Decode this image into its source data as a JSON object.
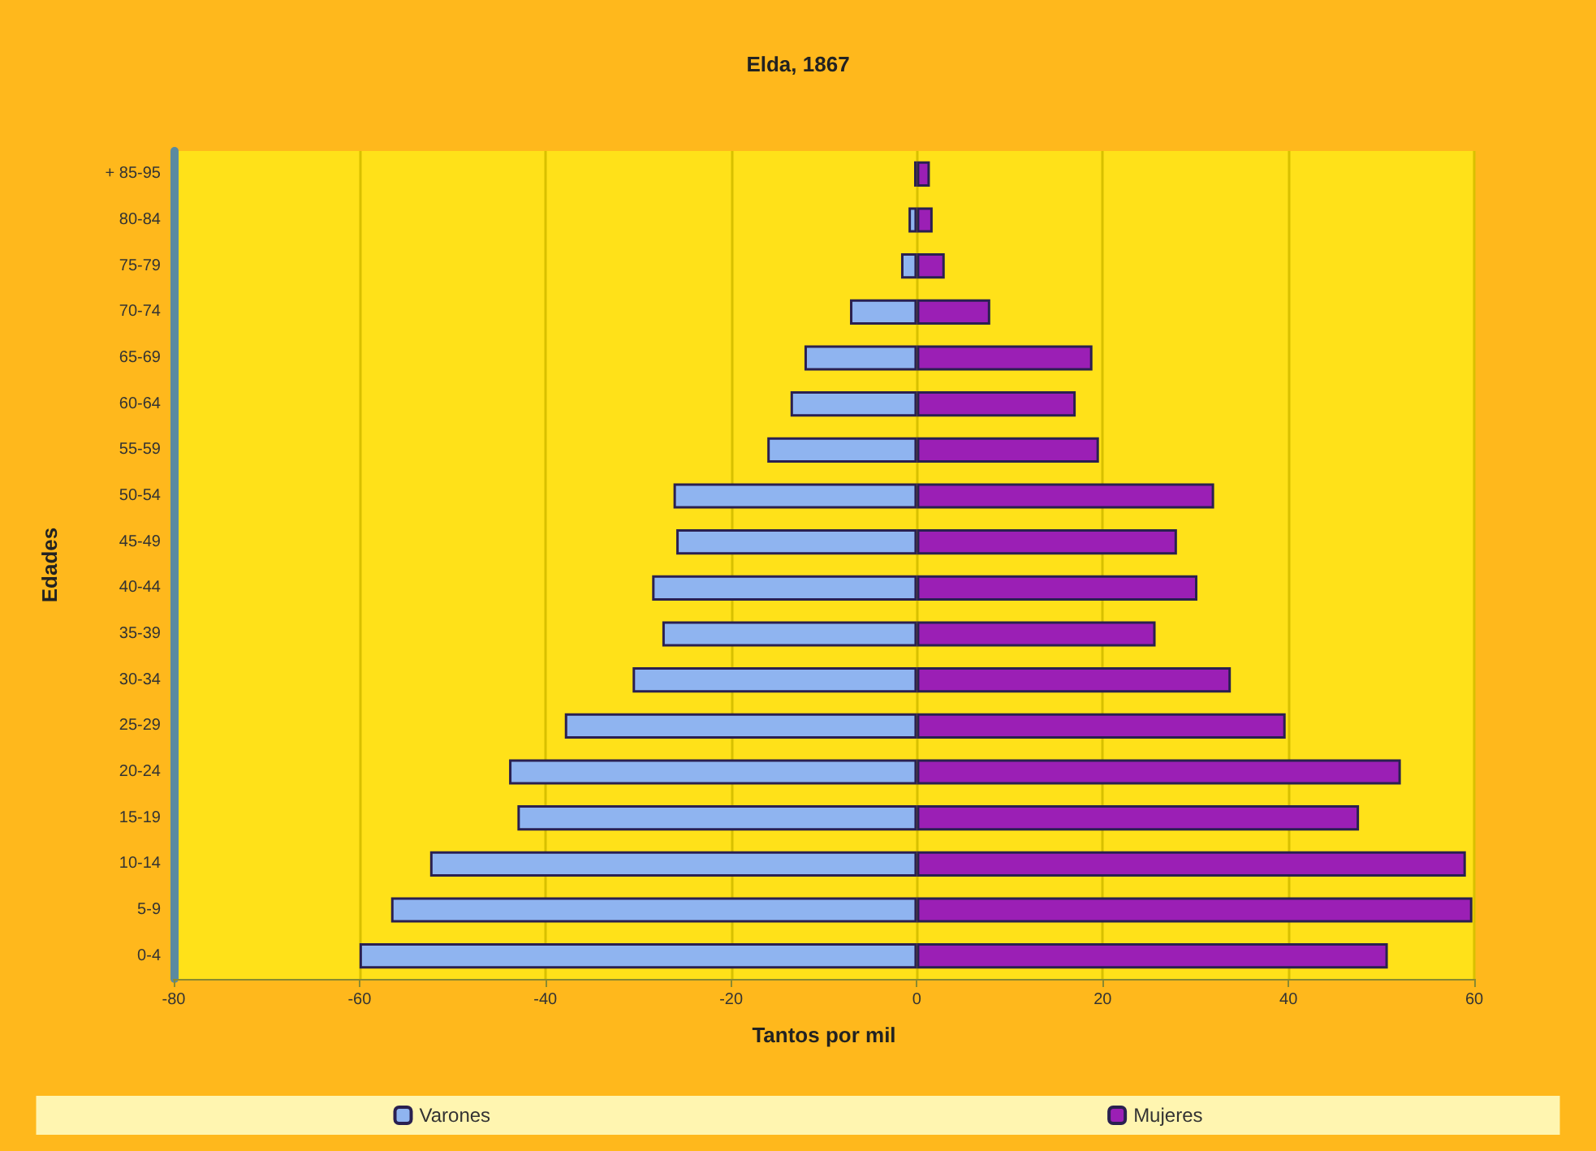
{
  "chart_data": {
    "type": "bar",
    "title": "Elda, 1867",
    "xlabel": "Tantos por mil",
    "ylabel": "Edades",
    "orientation": "horizontal",
    "stacked": true,
    "categories": [
      "+ 85-95",
      "80-84",
      "75-79",
      "70-74",
      "65-69",
      "60-64",
      "55-59",
      "50-54",
      "45-49",
      "40-44",
      "35-39",
      "30-34",
      "25-29",
      "20-24",
      "15-19",
      "10-14",
      "5-9",
      "0-4"
    ],
    "series": [
      {
        "name": "Varones",
        "color": "#8fb4f0",
        "values": [
          -0.3,
          -0.9,
          -1.7,
          -7.2,
          -12.1,
          -13.6,
          -16.1,
          -26.2,
          -25.9,
          -28.5,
          -27.4,
          -30.6,
          -37.9,
          -43.9,
          -43,
          -52.4,
          -56.6,
          -60
        ]
      },
      {
        "name": "Mujeres",
        "color": "#9b1fb5",
        "values": [
          1.4,
          1.7,
          3,
          7.9,
          18.9,
          17.1,
          19.6,
          32,
          28,
          30.2,
          25.7,
          33.8,
          39.7,
          52.1,
          47.6,
          59.1,
          59.8,
          50.7
        ]
      }
    ],
    "xlim": [
      -80,
      60
    ],
    "xticks": [
      -80,
      -60,
      -40,
      -20,
      0,
      20,
      40,
      60
    ],
    "grid": "x",
    "legend": "bottom"
  }
}
